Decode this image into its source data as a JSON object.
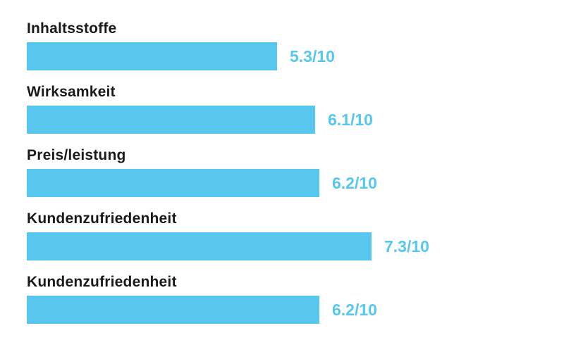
{
  "chart_data": {
    "type": "bar",
    "orientation": "horizontal",
    "title": "",
    "xlabel": "",
    "ylabel": "",
    "max_value": 10,
    "grid": false,
    "legend": false,
    "bar_color": "#57C7ED",
    "label_color": "#1a1a1a",
    "score_color": "#57C7ED",
    "background_color": "#ffffff",
    "categories": [
      "Inhaltsstoffe",
      "Wirksamkeit",
      "Preis/leistung",
      "Kundenzufriedenheit",
      "Kundenzufriedenheit"
    ],
    "values": [
      5.3,
      6.1,
      6.2,
      7.3,
      6.2
    ],
    "value_labels": [
      "5.3/10",
      "6.1/10",
      "6.2/10",
      "7.3/10",
      "6.2/10"
    ]
  },
  "rows": [
    {
      "label": "Inhaltsstoffe",
      "score_text": "5.3/10"
    },
    {
      "label": "Wirksamkeit",
      "score_text": "6.1/10"
    },
    {
      "label": "Preis/leistung",
      "score_text": "6.2/10"
    },
    {
      "label": "Kundenzufriedenheit",
      "score_text": "7.3/10"
    },
    {
      "label": "Kundenzufriedenheit",
      "score_text": "6.2/10"
    }
  ]
}
